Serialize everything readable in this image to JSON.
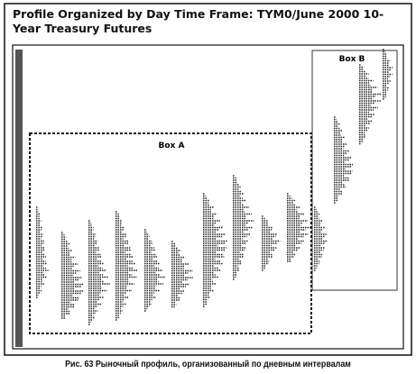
{
  "header": {
    "title": "Profile Organized by Day Time Frame: TYM0/June 2000 10-Year Treasury Futures"
  },
  "boxes": [
    {
      "label": "Box A"
    },
    {
      "label": "Box B"
    }
  ],
  "caption": "Рис. 63 Рыночный профиль, организованный по дневным интервалам"
}
